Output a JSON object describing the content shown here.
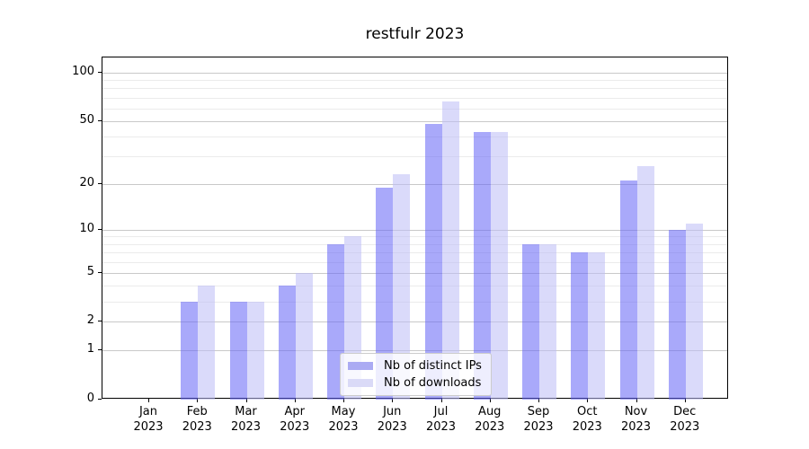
{
  "chart_data": {
    "type": "bar",
    "title": "restfulr 2023",
    "categories": [
      "Jan 2023",
      "Feb 2023",
      "Mar 2023",
      "Apr 2023",
      "May 2023",
      "Jun 2023",
      "Jul 2023",
      "Aug 2023",
      "Sep 2023",
      "Oct 2023",
      "Nov 2023",
      "Dec 2023"
    ],
    "x_tick_month": [
      "Jan",
      "Feb",
      "Mar",
      "Apr",
      "May",
      "Jun",
      "Jul",
      "Aug",
      "Sep",
      "Oct",
      "Nov",
      "Dec"
    ],
    "x_tick_year": "2023",
    "series": [
      {
        "name": "Nb of distinct IPs",
        "values": [
          0,
          3,
          3,
          4,
          8,
          19,
          48,
          43,
          8,
          7,
          21,
          10
        ],
        "bar_color_rgba": "rgba(98,98,245,0.55)",
        "swatch_color": "#ababf3"
      },
      {
        "name": "Nb of downloads",
        "values": [
          0,
          4,
          3,
          5,
          9,
          23,
          66,
          43,
          8,
          7,
          26,
          11
        ],
        "bar_color_rgba": "rgba(188,188,246,0.55)",
        "swatch_color": "#dadaf7"
      }
    ],
    "yscale": "log1p",
    "ylim": [
      0,
      124
    ],
    "y_major_ticks": [
      0,
      1,
      2,
      5,
      10,
      20,
      50,
      100
    ],
    "y_minor_gridlines": [
      3,
      4,
      6,
      7,
      8,
      9,
      30,
      40,
      60,
      70,
      80,
      90
    ],
    "grid": "both",
    "legend_position": "lower center",
    "colors": {
      "axis": "#000000",
      "major_grid": "#c9c9c9",
      "minor_grid": "#ebebeb",
      "background": "#ffffff"
    }
  }
}
